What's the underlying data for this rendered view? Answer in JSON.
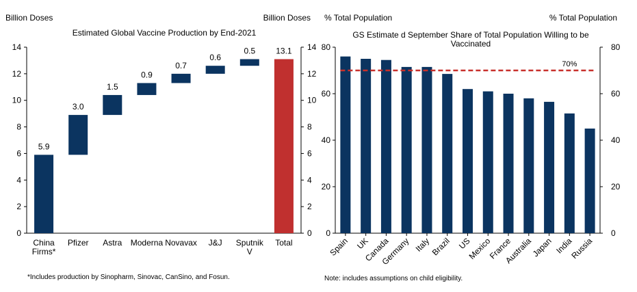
{
  "colors": {
    "navy": "#0b3460",
    "red": "#c0302f",
    "dashed_line": "#c8302b",
    "axis": "#000000"
  },
  "chart_data": [
    {
      "type": "bar",
      "subtype": "waterfall",
      "title": "Estimated Global Vaccine Production by End-2021",
      "ylabel_left": "Billion Doses",
      "ylabel_right": "Billion Doses",
      "ylim": [
        0,
        14
      ],
      "yticks": [
        "0",
        "2",
        "4",
        "6",
        "8",
        "10",
        "12",
        "14"
      ],
      "categories": [
        [
          "China",
          "Firms*"
        ],
        [
          "Pfizer"
        ],
        [
          "Astra"
        ],
        [
          "Moderna"
        ],
        [
          "Novavax"
        ],
        [
          "J&J"
        ],
        [
          "Sputnik",
          "V"
        ],
        [
          "Total"
        ]
      ],
      "bars": [
        {
          "label": "5.9",
          "start": 0,
          "end": 5.9,
          "color": "navy"
        },
        {
          "label": "3.0",
          "start": 5.9,
          "end": 8.9,
          "color": "navy"
        },
        {
          "label": "1.5",
          "start": 8.9,
          "end": 10.4,
          "color": "navy"
        },
        {
          "label": "0.9",
          "start": 10.4,
          "end": 11.3,
          "color": "navy"
        },
        {
          "label": "0.7",
          "start": 11.3,
          "end": 12.0,
          "color": "navy"
        },
        {
          "label": "0.6",
          "start": 12.0,
          "end": 12.6,
          "color": "navy"
        },
        {
          "label": "0.5",
          "start": 12.6,
          "end": 13.1,
          "color": "navy"
        },
        {
          "label": "13.1",
          "start": 0,
          "end": 13.1,
          "color": "red"
        }
      ],
      "footnote": "*Includes production by Sinopharm, Sinovac, CanSino, and Fosun."
    },
    {
      "type": "bar",
      "title": "GS Estimated September Share of Total Population Willing to be Vaccinated",
      "title_lines": [
        "GS Estimate d September Share of Total Population Willing to be",
        "Vaccinated"
      ],
      "ylabel_left": "% Total Population",
      "ylabel_right": "% Total Population",
      "ylim": [
        0,
        80
      ],
      "yticks": [
        "0",
        "20",
        "40",
        "60",
        "80"
      ],
      "categories": [
        "Spain",
        "UK",
        "Canada",
        "Germany",
        "Italy",
        "Brazil",
        "US",
        "Mexico",
        "France",
        "Australia",
        "Japan",
        "India",
        "Russia"
      ],
      "values": [
        76,
        75,
        74.5,
        71.5,
        71.5,
        68.5,
        62,
        61,
        60,
        58,
        56.5,
        51.5,
        45
      ],
      "reference_line": {
        "value": 70,
        "label": "70%"
      },
      "footnote": "Note: includes assumptions on child eligibility."
    }
  ]
}
